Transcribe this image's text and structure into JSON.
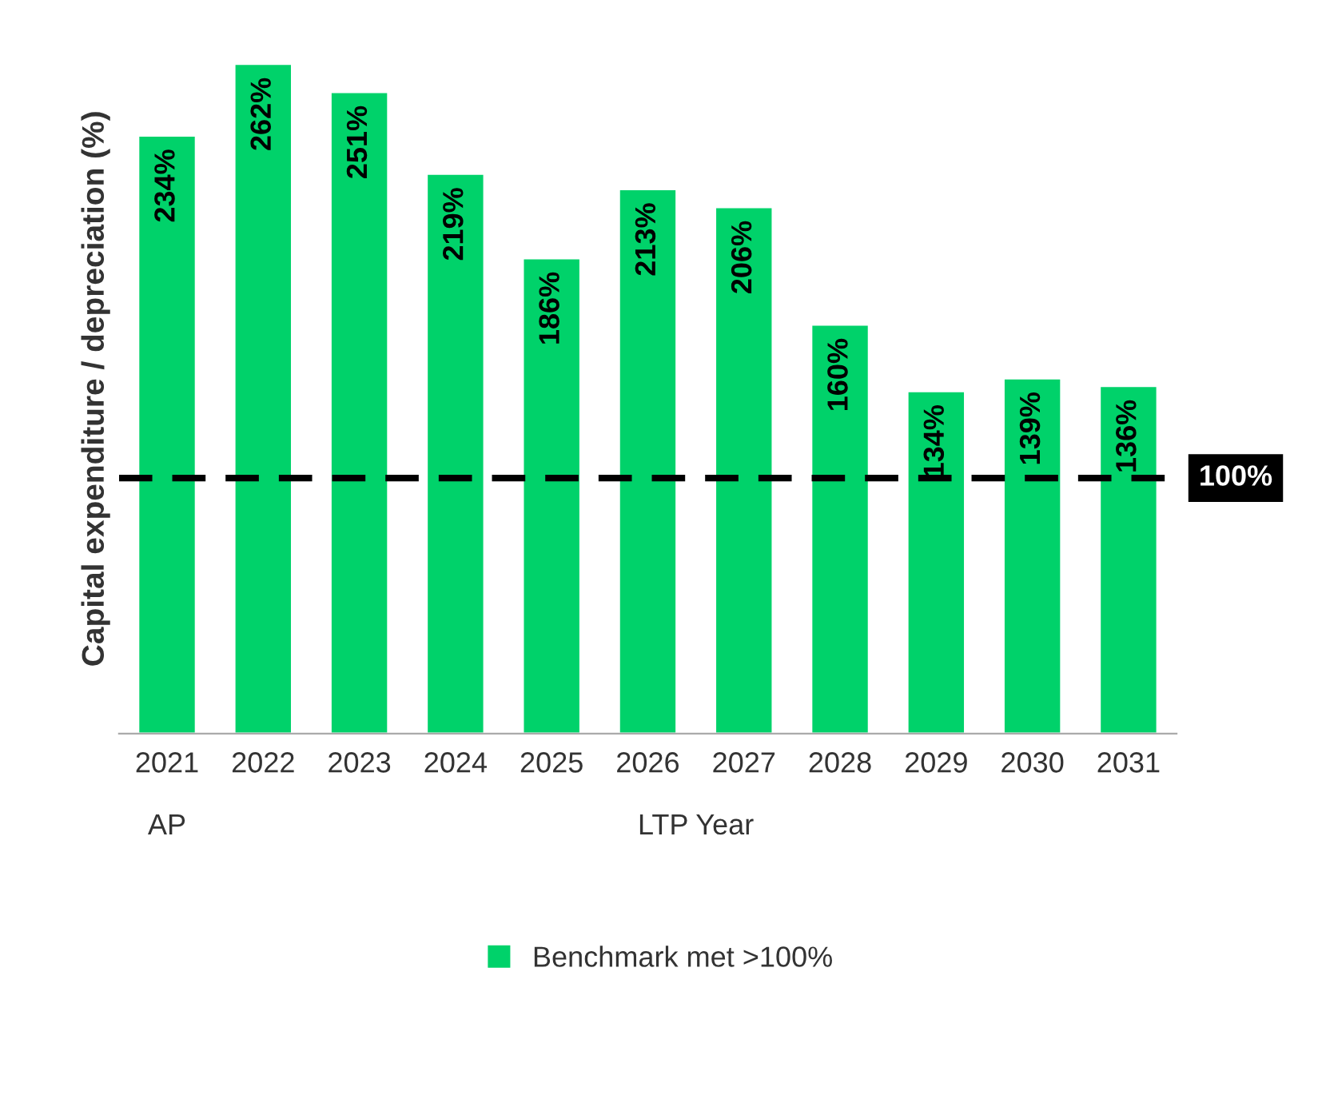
{
  "chart_data": {
    "type": "bar",
    "ylabel": "Capital expenditure / depreciation (%)",
    "categories": [
      "2021",
      "2022",
      "2023",
      "2024",
      "2025",
      "2026",
      "2027",
      "2028",
      "2029",
      "2030",
      "2031"
    ],
    "series": [
      {
        "name": "Benchmark met >100%",
        "color": "#00d26a",
        "values": [
          234,
          262,
          251,
          219,
          186,
          213,
          206,
          160,
          134,
          139,
          136
        ],
        "value_labels": [
          "234%",
          "262%",
          "251%",
          "219%",
          "186%",
          "213%",
          "206%",
          "160%",
          "134%",
          "139%",
          "136%"
        ]
      }
    ],
    "ref_lines": [
      {
        "axis": "y",
        "value": 100,
        "label": "100%",
        "color": "#000000",
        "line_style": "dashed"
      }
    ],
    "annotations": [
      "AP",
      "LTP Year"
    ],
    "tick_labels": "x",
    "grid": false,
    "legend": "bottom"
  }
}
